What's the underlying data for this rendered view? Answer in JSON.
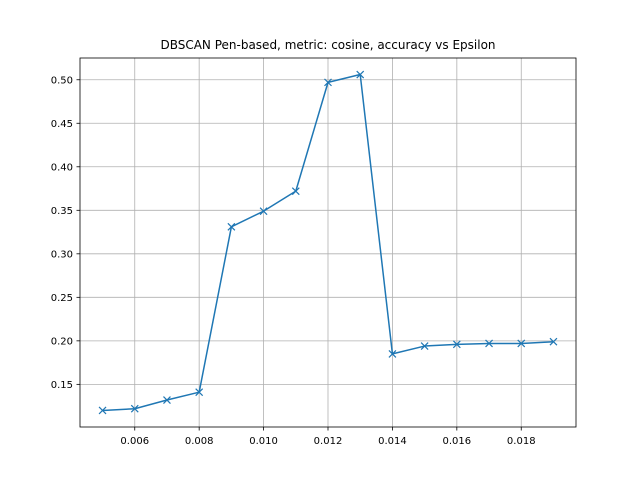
{
  "chart_data": {
    "type": "line",
    "title": "DBSCAN Pen-based, metric: cosine, accuracy vs Epsilon",
    "xlabel": "",
    "ylabel": "",
    "xlim": [
      0.0043,
      0.0197
    ],
    "ylim": [
      0.101,
      0.525
    ],
    "grid": true,
    "marker": "x",
    "color": "#1f77b4",
    "x_ticks": [
      {
        "value": 0.006,
        "label": "0.006"
      },
      {
        "value": 0.008,
        "label": "0.008"
      },
      {
        "value": 0.01,
        "label": "0.010"
      },
      {
        "value": 0.012,
        "label": "0.012"
      },
      {
        "value": 0.014,
        "label": "0.014"
      },
      {
        "value": 0.016,
        "label": "0.016"
      },
      {
        "value": 0.018,
        "label": "0.018"
      }
    ],
    "y_ticks": [
      {
        "value": 0.15,
        "label": "0.15"
      },
      {
        "value": 0.2,
        "label": "0.20"
      },
      {
        "value": 0.25,
        "label": "0.25"
      },
      {
        "value": 0.3,
        "label": "0.30"
      },
      {
        "value": 0.35,
        "label": "0.35"
      },
      {
        "value": 0.4,
        "label": "0.40"
      },
      {
        "value": 0.45,
        "label": "0.45"
      },
      {
        "value": 0.5,
        "label": "0.50"
      }
    ],
    "x": [
      0.005,
      0.006,
      0.007,
      0.008,
      0.009,
      0.01,
      0.011,
      0.012,
      0.013,
      0.014,
      0.015,
      0.016,
      0.017,
      0.018,
      0.019
    ],
    "y": [
      0.12,
      0.122,
      0.132,
      0.141,
      0.331,
      0.349,
      0.372,
      0.497,
      0.506,
      0.185,
      0.194,
      0.196,
      0.197,
      0.197,
      0.199
    ]
  }
}
